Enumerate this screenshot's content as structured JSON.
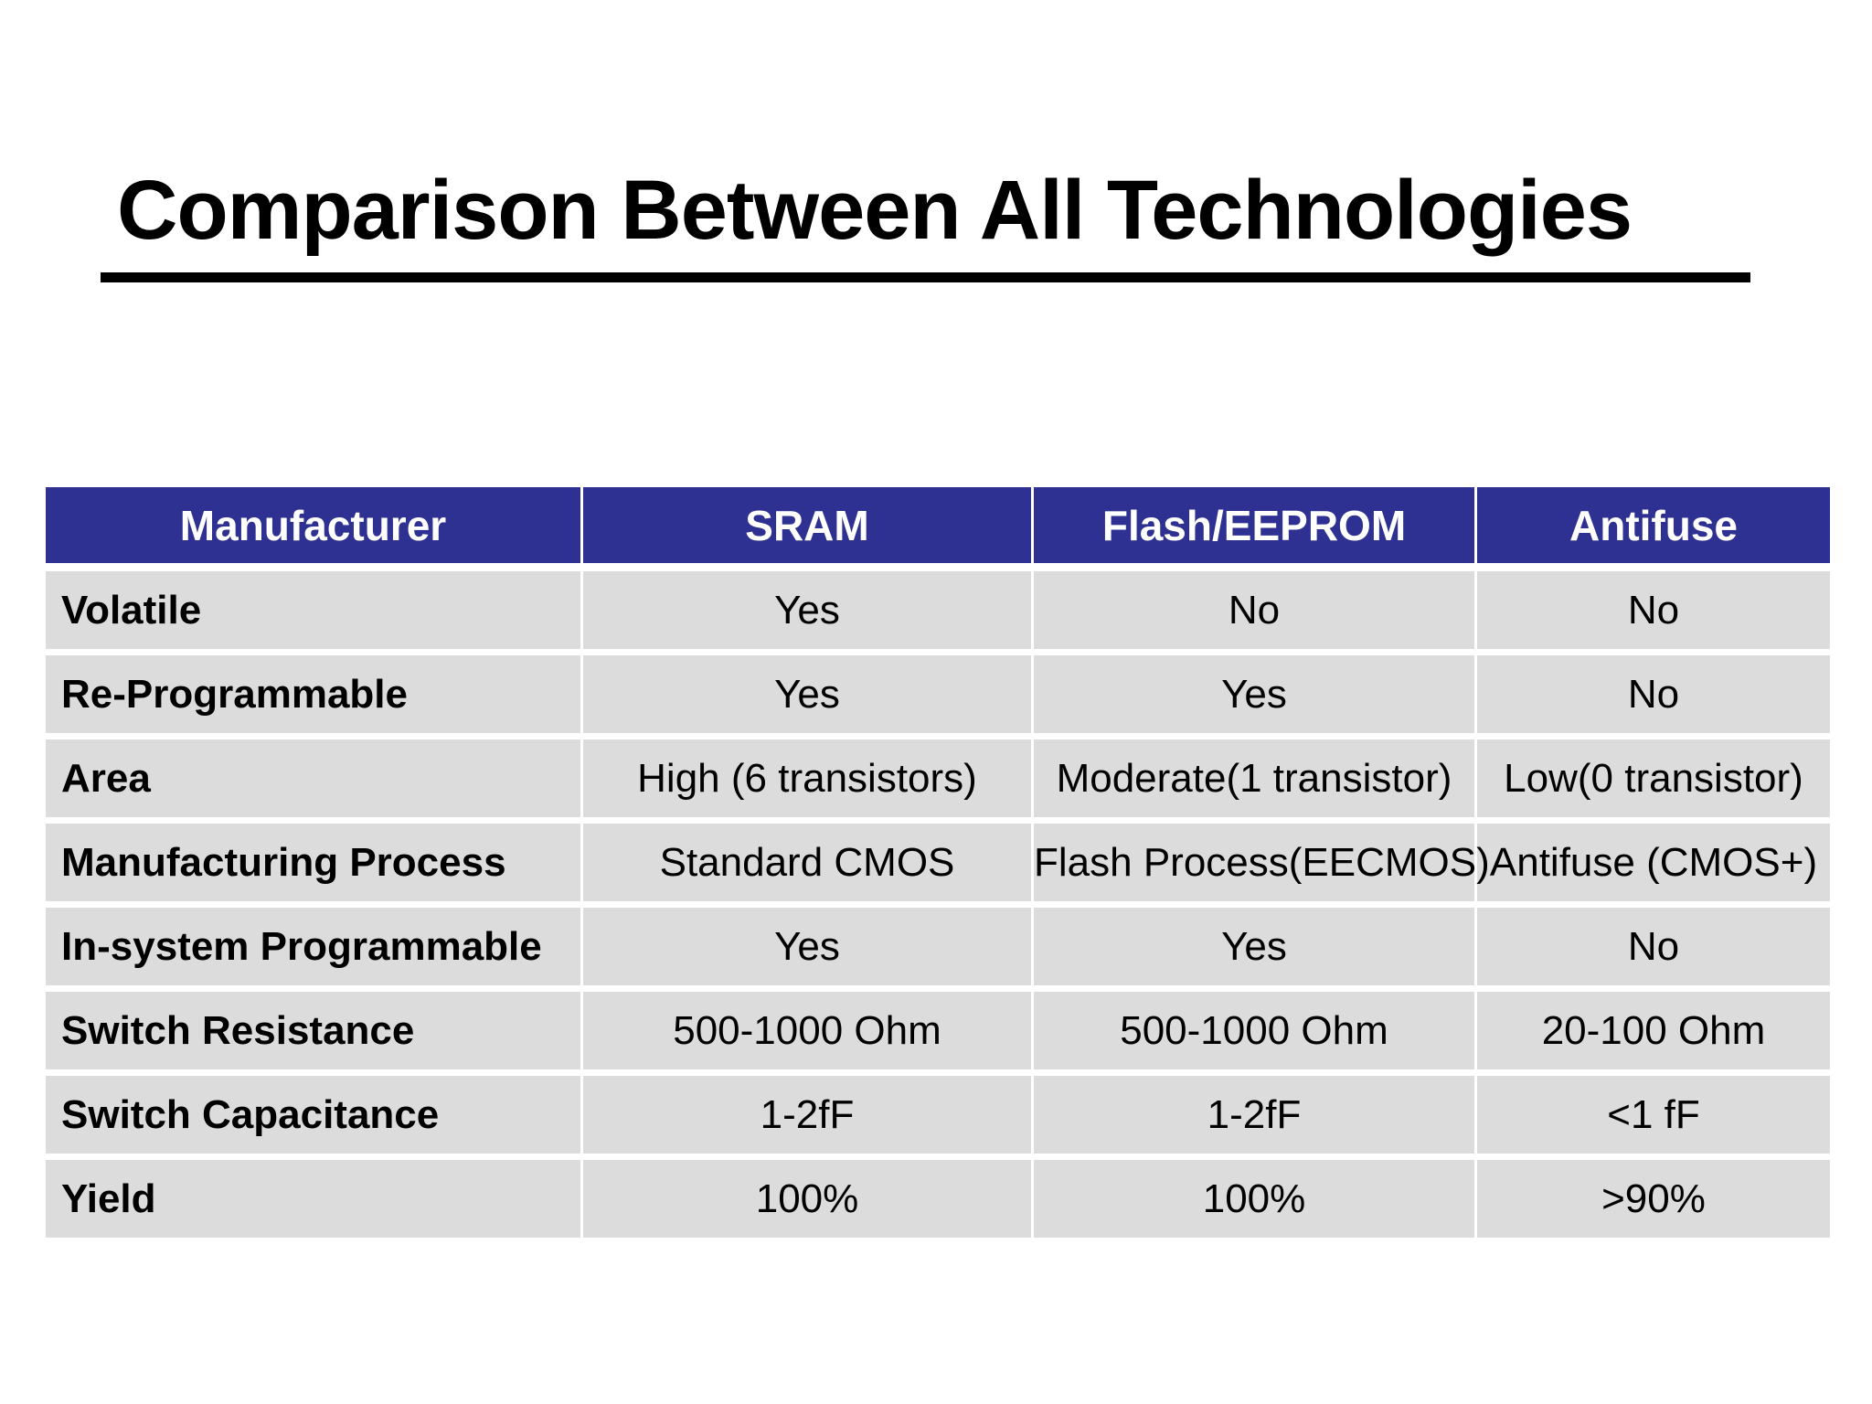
{
  "title": "Comparison Between All Technologies",
  "colors": {
    "header_background": "#2e3192",
    "header_text": "#ffffff",
    "cell_background": "#dcdcdc",
    "title_rule": "#000000"
  },
  "table": {
    "headers": [
      "Manufacturer",
      "SRAM",
      "Flash/EEPROM",
      "Antifuse"
    ],
    "rows": [
      {
        "label": "Volatile",
        "sram": "Yes",
        "flash": "No",
        "antifuse": "No"
      },
      {
        "label": "Re-Programmable",
        "sram": "Yes",
        "flash": "Yes",
        "antifuse": "No"
      },
      {
        "label": "Area",
        "sram": "High (6 transistors)",
        "flash": "Moderate(1 transistor)",
        "antifuse": "Low(0 transistor)"
      },
      {
        "label": "Manufacturing Process",
        "sram": "Standard CMOS",
        "flash": "Flash Process(EECMOS)",
        "antifuse": "Antifuse (CMOS+)"
      },
      {
        "label": "In-system Programmable",
        "sram": "Yes",
        "flash": "Yes",
        "antifuse": "No"
      },
      {
        "label": "Switch Resistance",
        "sram": "500-1000 Ohm",
        "flash": "500-1000 Ohm",
        "antifuse": "20-100 Ohm"
      },
      {
        "label": "Switch Capacitance",
        "sram": "1-2fF",
        "flash": "1-2fF",
        "antifuse": "<1 fF"
      },
      {
        "label": "Yield",
        "sram": "100%",
        "flash": "100%",
        "antifuse": ">90%"
      }
    ]
  }
}
